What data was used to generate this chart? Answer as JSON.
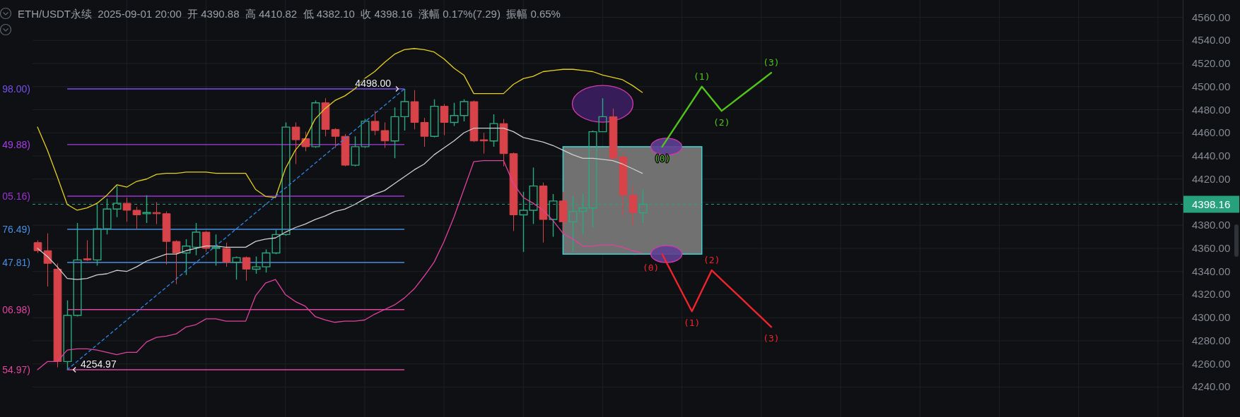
{
  "chart_data": {
    "type": "candlestick",
    "title": "ETH/USDT永续  2025-09-01 20:00  开 4390.88  高 4410.82  低 4382.10  收 4398.16  涨幅 0.17%(7.29)  振幅 0.65%",
    "categories": [
      null,
      null,
      null,
      null,
      null,
      null,
      null,
      null,
      null,
      null,
      null,
      null,
      null,
      null,
      null,
      null,
      null,
      null,
      null,
      null,
      null,
      null,
      null,
      null,
      null,
      null,
      null,
      null,
      null,
      null,
      null,
      null,
      null,
      null,
      null,
      null,
      null,
      null,
      null,
      null,
      null,
      null,
      null,
      null,
      null,
      null,
      null,
      null,
      null,
      null,
      null,
      null,
      null,
      null,
      null,
      null,
      null,
      null,
      null,
      null,
      null,
      null,
      null,
      null,
      null,
      null,
      null,
      null,
      null,
      null,
      null,
      null,
      null,
      null,
      null,
      null,
      null,
      null,
      null,
      null,
      null,
      null,
      null,
      null,
      null,
      null,
      null,
      null,
      null,
      null,
      null,
      null,
      null,
      null,
      null,
      null,
      null,
      null,
      null,
      null,
      null,
      null,
      null,
      null,
      null,
      null,
      null,
      null,
      null,
      null,
      null,
      null,
      null,
      null,
      null,
      null
    ],
    "ohlc": [
      [
        4365,
        4367,
        4356,
        4358
      ],
      [
        4358,
        4373,
        4327,
        4347
      ],
      [
        4342,
        4347,
        4257,
        4262
      ],
      [
        4262,
        4315,
        4254.97,
        4302
      ],
      [
        4302,
        4382,
        4301,
        4350
      ],
      [
        4351,
        4367,
        4349,
        4350
      ],
      [
        4350,
        4398,
        4345,
        4377
      ],
      [
        4377,
        4403,
        4372,
        4394
      ],
      [
        4394,
        4414,
        4387,
        4399
      ],
      [
        4399,
        4404,
        4383,
        4393
      ],
      [
        4393,
        4396,
        4377,
        4389
      ],
      [
        4390,
        4406,
        4382,
        4391
      ],
      [
        4391,
        4400,
        4381,
        4390
      ],
      [
        4390,
        4392,
        4346,
        4366
      ],
      [
        4366,
        4367,
        4329,
        4356
      ],
      [
        4356,
        4368,
        4337,
        4362
      ],
      [
        4361,
        4382,
        4354,
        4374
      ],
      [
        4374,
        4375,
        4357,
        4360
      ],
      [
        4360,
        4372,
        4345,
        4361
      ],
      [
        4360,
        4365,
        4344,
        4348
      ],
      [
        4348,
        4353,
        4333,
        4352
      ],
      [
        4352,
        4353,
        4332,
        4342
      ],
      [
        4342,
        4353,
        4338,
        4344
      ],
      [
        4344,
        4359,
        4339,
        4356
      ],
      [
        4356,
        4376,
        4355,
        4372
      ],
      [
        4372,
        4469,
        4371,
        4465
      ],
      [
        4465,
        4469,
        4433,
        4454
      ],
      [
        4455,
        4461,
        4444,
        4448
      ],
      [
        4448,
        4488,
        4447,
        4486
      ],
      [
        4486,
        4490,
        4457,
        4463
      ],
      [
        4463,
        4464,
        4447,
        4457
      ],
      [
        4457,
        4459,
        4431,
        4432
      ],
      [
        4432,
        4457,
        4431,
        4448
      ],
      [
        4448,
        4472,
        4447,
        4470
      ],
      [
        4470,
        4479,
        4458,
        4462
      ],
      [
        4462,
        4469,
        4447,
        4453
      ],
      [
        4453,
        4482,
        4438,
        4474
      ],
      [
        4474,
        4498.0,
        4462,
        4487
      ],
      [
        4487,
        4497,
        4463,
        4469
      ],
      [
        4469,
        4473,
        4448,
        4457
      ],
      [
        4457,
        4489,
        4456,
        4483
      ],
      [
        4483,
        4485,
        4458,
        4469
      ],
      [
        4469,
        4486,
        4466,
        4475
      ],
      [
        4475,
        4489,
        4470,
        4487
      ],
      [
        4487,
        4488,
        4452,
        4453
      ],
      [
        4454,
        4460,
        4442,
        4453
      ],
      [
        4453,
        4476,
        4448,
        4468
      ],
      [
        4468,
        4472,
        4431,
        4442
      ],
      [
        4442,
        4443,
        4375,
        4389
      ],
      [
        4389,
        4409,
        4357,
        4393
      ],
      [
        4393,
        4430,
        4381,
        4414
      ],
      [
        4414,
        4417,
        4365,
        4385
      ],
      [
        4385,
        4407,
        4370,
        4401
      ],
      [
        4401,
        4409,
        4372,
        4383
      ],
      [
        4383,
        4405,
        4357,
        4392
      ],
      [
        4392,
        4407,
        4372,
        4395
      ],
      [
        4395,
        4462,
        4378,
        4461
      ],
      [
        4461,
        4490,
        4461,
        4474
      ],
      [
        4474,
        4481,
        4436,
        4438
      ],
      [
        4439,
        4443,
        4388,
        4406
      ],
      [
        4406,
        4414,
        4380,
        4391
      ],
      [
        4390.88,
        4410.82,
        4382.1,
        4398.16
      ],
      null,
      null,
      null,
      null,
      null,
      null,
      null,
      null,
      null,
      null,
      null,
      null,
      null,
      null,
      null,
      null,
      null,
      null,
      null,
      null,
      null,
      null,
      null,
      null,
      null,
      null,
      null,
      null,
      null,
      null,
      null,
      null,
      null,
      null,
      null,
      null,
      null,
      null,
      null,
      null,
      null,
      null,
      null,
      null,
      null,
      null,
      null,
      null,
      null,
      null,
      null,
      null,
      null,
      null
    ],
    "colors": [
      "#d8434a",
      "#d8434a",
      "#d8434a",
      "#2aa97f",
      "#2aa97f",
      "#d8434a",
      "#2aa97f",
      "#2aa97f",
      "#2aa97f",
      "#d8434a",
      "#d8434a",
      "#2aa97f",
      "#d8434a",
      "#d8434a",
      "#d8434a",
      "#2aa97f",
      "#2aa97f",
      "#d8434a",
      "#2aa97f",
      "#d8434a",
      "#2aa97f",
      "#d8434a",
      "#2aa97f",
      "#2aa97f",
      "#2aa97f",
      "#2aa97f",
      "#d8434a",
      "#d8434a",
      "#2aa97f",
      "#d8434a",
      "#d8434a",
      "#d8434a",
      "#2aa97f",
      "#2aa97f",
      "#d8434a",
      "#d8434a",
      "#2aa97f",
      "#2aa97f",
      "#d8434a",
      "#d8434a",
      "#2aa97f",
      "#d8434a",
      "#2aa97f",
      "#2aa97f",
      "#d8434a",
      "#d8434a",
      "#2aa97f",
      "#d8434a",
      "#d8434a",
      "#2aa97f",
      "#2aa97f",
      "#d8434a",
      "#2aa97f",
      "#d8434a",
      "#2aa97f",
      "#2aa97f",
      "#2aa97f",
      "#2aa97f",
      "#d8434a",
      "#d8434a",
      "#d8434a",
      "#2aa97f",
      null,
      null,
      null,
      null,
      null,
      null,
      null,
      null,
      null,
      null,
      null,
      null,
      null,
      null,
      null,
      null,
      null,
      null,
      null,
      null,
      null,
      null,
      null,
      null,
      null,
      null,
      null,
      null,
      null,
      null,
      null,
      null,
      null,
      null,
      null,
      null,
      null,
      null,
      null,
      null,
      null,
      null,
      null,
      null,
      null,
      null,
      null,
      null,
      null,
      null,
      null,
      null,
      null,
      null
    ],
    "series": [
      {
        "type": "line",
        "color": "#e6cf1f",
        "values": [
          4465,
          4445,
          4422,
          4398,
          4393,
          4395,
          4399,
          4406,
          4415,
          4413,
          4418,
          4420,
          4424,
          4425,
          4425,
          4426,
          4426,
          4426,
          4425,
          4425,
          4425,
          4425,
          4411,
          4405,
          4404,
          4429,
          4445,
          4455,
          4472,
          4481,
          4488,
          4492,
          4498,
          4507,
          4513,
          4521,
          4528,
          4532,
          4533,
          4532,
          4530,
          4524,
          4516,
          4510,
          4494,
          4494,
          4494,
          4494,
          4502,
          4507,
          4509,
          4513,
          4514,
          4515,
          4515,
          4514,
          4513,
          4510,
          4508,
          4506,
          4501,
          4495,
          null,
          null,
          null,
          null,
          null,
          null,
          null,
          null,
          null,
          null,
          null,
          null,
          null,
          null,
          null,
          null,
          null,
          null,
          null,
          null,
          null,
          null,
          null,
          null,
          null,
          null,
          null,
          null,
          null,
          null,
          null,
          null,
          null,
          null,
          null,
          null,
          null,
          null,
          null,
          null,
          null,
          null,
          null,
          null,
          null,
          null,
          null,
          null,
          null,
          null,
          null,
          null,
          null,
          null
        ]
      },
      {
        "type": "line",
        "color": "#cfcfcf",
        "values": [
          4360,
          4353,
          4344,
          4334,
          4333,
          4334,
          4337,
          4338,
          4341,
          4340,
          4344,
          4349,
          4352,
          4355,
          4355,
          4358,
          4360,
          4362,
          4362,
          4361,
          4361,
          4361,
          4366,
          4368,
          4369,
          4374,
          4378,
          4381,
          4385,
          4388,
          4392,
          4394,
          4398,
          4403,
          4407,
          4410,
          4416,
          4422,
          4428,
          4433,
          4441,
          4447,
          4453,
          4460,
          4464,
          4464,
          4464,
          4464,
          4461,
          4456,
          4454,
          4452,
          4449,
          4445,
          4441,
          4438,
          4438,
          4437,
          4436,
          4433,
          4429,
          4425,
          null,
          null,
          null,
          null,
          null,
          null,
          null,
          null,
          null,
          null,
          null,
          null,
          null,
          null,
          null,
          null,
          null,
          null,
          null,
          null,
          null,
          null,
          null,
          null,
          null,
          null,
          null,
          null,
          null,
          null,
          null,
          null,
          null,
          null,
          null,
          null,
          null,
          null,
          null,
          null,
          null,
          null,
          null,
          null,
          null,
          null,
          null,
          null,
          null,
          null,
          null,
          null,
          null,
          null
        ]
      },
      {
        "type": "line",
        "color": "#e0419f",
        "values": [
          4255,
          4262,
          4262,
          4272,
          4273,
          4273,
          4272,
          4270,
          4268,
          4270,
          4270,
          4279,
          4283,
          4284,
          4286,
          4292,
          4294,
          4299,
          4299,
          4297,
          4297,
          4297,
          4319,
          4330,
          4333,
          4320,
          4314,
          4310,
          4301,
          4298,
          4296,
          4297,
          4297,
          4298,
          4303,
          4307,
          4311,
          4317,
          4325,
          4336,
          4348,
          4366,
          4387,
          4411,
          4435,
          4436,
          4436,
          4436,
          4416,
          4404,
          4399,
          4393,
          4384,
          4373,
          4368,
          4362,
          4362,
          4363,
          4363,
          4361,
          4358,
          4356,
          null,
          null,
          null,
          null,
          null,
          null,
          null,
          null,
          null,
          null,
          null,
          null,
          null,
          null,
          null,
          null,
          null,
          null,
          null,
          null,
          null,
          null,
          null,
          null,
          null,
          null,
          null,
          null,
          null,
          null,
          null,
          null,
          null,
          null,
          null,
          null,
          null,
          null,
          null,
          null,
          null,
          null,
          null,
          null,
          null,
          null,
          null,
          null,
          null,
          null,
          null,
          null,
          null,
          null
        ]
      },
      {
        "type": "line",
        "color": "#2f86e8",
        "line_style": "dashed",
        "values": [
          null,
          null,
          null,
          4254.97,
          4262.1,
          4269.3,
          4276.4,
          4283.6,
          4290.7,
          4297.9,
          4305.0,
          4312.2,
          4319.3,
          4326.4,
          4333.6,
          4340.7,
          4347.9,
          4355.0,
          4362.2,
          4369.3,
          4376.5,
          4383.6,
          4390.8,
          4397.9,
          4405.1,
          4412.2,
          4419.4,
          4426.5,
          4433.7,
          4440.8,
          4448.0,
          4455.1,
          4462.3,
          4469.4,
          4476.6,
          4483.7,
          4490.9,
          4498.0,
          null,
          null,
          null,
          null,
          null,
          null,
          null,
          null,
          null,
          null,
          null,
          null,
          null,
          null,
          null,
          null,
          null,
          null,
          null,
          null,
          null,
          null,
          null,
          null,
          null,
          null,
          null,
          null,
          null,
          null,
          null,
          null,
          null,
          null,
          null,
          null,
          null,
          null,
          null,
          null,
          null,
          null,
          null,
          null,
          null,
          null,
          null,
          null,
          null,
          null,
          null,
          null,
          null,
          null,
          null,
          null,
          null,
          null,
          null,
          null,
          null,
          null,
          null,
          null,
          null,
          null,
          null,
          null,
          null,
          null,
          null,
          null,
          null,
          null,
          null,
          null,
          null,
          null
        ],
        "value_labels": [
          null,
          null,
          null,
          "4254.97",
          null,
          null,
          null,
          null,
          null,
          null,
          null,
          null,
          null,
          null,
          null,
          null,
          null,
          null,
          null,
          null,
          null,
          null,
          null,
          null,
          null,
          null,
          null,
          null,
          null,
          null,
          null,
          null,
          null,
          null,
          null,
          null,
          null,
          "4498.00",
          null,
          null,
          null,
          null,
          null,
          null,
          null,
          null,
          null,
          null,
          null,
          null,
          null,
          null,
          null,
          null,
          null,
          null,
          null,
          null,
          null,
          null,
          null,
          null,
          null,
          null,
          null,
          null,
          null,
          null,
          null,
          null,
          null,
          null,
          null,
          null,
          null,
          null,
          null,
          null,
          null,
          null,
          null,
          null,
          null,
          null,
          null,
          null,
          null,
          null,
          null,
          null,
          null,
          null,
          null,
          null,
          null,
          null,
          null,
          null,
          null,
          null,
          null,
          null,
          null,
          null,
          null,
          null,
          null,
          null,
          null,
          null,
          null,
          null,
          null,
          null,
          null,
          null
        ]
      },
      {
        "type": "line",
        "color": "#52c41a",
        "values": [
          null,
          null,
          null,
          null,
          null,
          null,
          null,
          null,
          null,
          null,
          null,
          null,
          null,
          null,
          null,
          null,
          null,
          null,
          null,
          null,
          null,
          null,
          null,
          null,
          null,
          null,
          null,
          null,
          null,
          null,
          null,
          null,
          null,
          null,
          null,
          null,
          null,
          null,
          null,
          null,
          null,
          null,
          null,
          null,
          null,
          null,
          null,
          null,
          null,
          null,
          null,
          null,
          null,
          null,
          null,
          null,
          null,
          null,
          null,
          null,
          null,
          null,
          null,
          4448,
          4461,
          4474,
          4487,
          4500,
          4489.5,
          4479,
          4485.6,
          4492.2,
          4498.8,
          4505.4,
          4512,
          null,
          null,
          null,
          null,
          null,
          null,
          null,
          null,
          null,
          null,
          null,
          null,
          null,
          null,
          null,
          null,
          null,
          null,
          null,
          null,
          null,
          null,
          null,
          null,
          null,
          null,
          null,
          null,
          null,
          null,
          null,
          null,
          null,
          null,
          null,
          null,
          null,
          null,
          null,
          null,
          null
        ]
      },
      {
        "type": "line",
        "color": "#f0242d",
        "values": [
          null,
          null,
          null,
          null,
          null,
          null,
          null,
          null,
          null,
          null,
          null,
          null,
          null,
          null,
          null,
          null,
          null,
          null,
          null,
          null,
          null,
          null,
          null,
          null,
          null,
          null,
          null,
          null,
          null,
          null,
          null,
          null,
          null,
          null,
          null,
          null,
          null,
          null,
          null,
          null,
          null,
          null,
          null,
          null,
          null,
          null,
          null,
          null,
          null,
          null,
          null,
          null,
          null,
          null,
          null,
          null,
          null,
          null,
          null,
          null,
          null,
          null,
          null,
          4355,
          4338.5,
          4322,
          4305.5,
          4323.3,
          4341,
          4332.8,
          4324.7,
          4316.5,
          4308.3,
          4300.2,
          4292,
          null,
          null,
          null,
          null,
          null,
          null,
          null,
          null,
          null,
          null,
          null,
          null,
          null,
          null,
          null,
          null,
          null,
          null,
          null,
          null,
          null,
          null,
          null,
          null,
          null,
          null,
          null,
          null,
          null,
          null,
          null,
          null,
          null,
          null,
          null,
          null,
          null,
          null,
          null,
          null,
          null
        ]
      }
    ],
    "ylim": [
      4214,
      4575
    ],
    "yticks": [
      {
        "value": 4240,
        "label": "4240.00"
      },
      {
        "value": 4260,
        "label": "4260.00"
      },
      {
        "value": 4280,
        "label": "4280.00"
      },
      {
        "value": 4300,
        "label": "4300.00"
      },
      {
        "value": 4320,
        "label": "4320.00"
      },
      {
        "value": 4340,
        "label": "4340.00"
      },
      {
        "value": 4360,
        "label": "4360.00"
      },
      {
        "value": 4380,
        "label": "4380.00"
      },
      {
        "value": 4400,
        "label": null
      },
      {
        "value": 4420,
        "label": "4420.00"
      },
      {
        "value": 4440,
        "label": "4440.00"
      },
      {
        "value": 4460,
        "label": "4460.00"
      },
      {
        "value": 4480,
        "label": "4480.00"
      },
      {
        "value": 4500,
        "label": "4500.00"
      },
      {
        "value": 4520,
        "label": "4520.00"
      },
      {
        "value": 4540,
        "label": "4540.00"
      },
      {
        "value": 4560,
        "label": "4560.00"
      }
    ],
    "tick_labels": "y",
    "grid": true,
    "ref_lines": [
      {
        "axis": "y",
        "value": 4498.0,
        "color": "#7a4ff0"
      },
      {
        "axis": "y",
        "value": 4449.88,
        "color": "#a53ee8"
      },
      {
        "axis": "y",
        "value": 4405.16,
        "color": "#9c33d4"
      },
      {
        "axis": "y",
        "value": 4376.49,
        "color": "#4a8fe2"
      },
      {
        "axis": "y",
        "value": 4347.81,
        "color": "#4a8fe2"
      },
      {
        "axis": "y",
        "value": 4306.98,
        "color": "#e0449f"
      },
      {
        "axis": "y",
        "value": 4254.97,
        "color": "#e0449f"
      },
      {
        "axis": "y",
        "value": 4398.16,
        "label": "4398.16",
        "color": "#26a17b",
        "line_style": "dashed"
      }
    ],
    "bands": [
      {
        "axis": "y",
        "from": 4355,
        "to": 4448,
        "color": "#7a7a7a"
      }
    ],
    "annotations": [
      "98.00)",
      "49.88)",
      "05.16)",
      "76.49)",
      "47.81)",
      "06.98)",
      "54.97)",
      {
        "text": "(0)",
        "y": 4448
      },
      {
        "text": "(1)",
        "y": 4500
      },
      {
        "text": "(2)",
        "y": 4479
      },
      {
        "text": "(3)",
        "y": 4512
      },
      {
        "text": "(0)",
        "y": 4355
      },
      {
        "text": "(1)",
        "y": 4305.5
      },
      {
        "text": "(2)",
        "y": 4341
      },
      {
        "text": "(3)",
        "y": 4292
      }
    ]
  }
}
